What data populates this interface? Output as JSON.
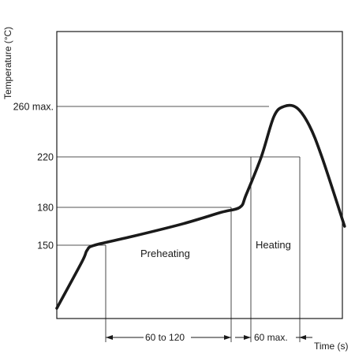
{
  "chart_data": {
    "type": "line",
    "ylabel": "Temperature (°C)",
    "xlabel": "Time (s)",
    "y_ticks": [
      {
        "value": 150,
        "label": "150"
      },
      {
        "value": 180,
        "label": "180"
      },
      {
        "value": 220,
        "label": "220"
      },
      {
        "value": 260,
        "label": "260 max."
      }
    ],
    "profile": [
      {
        "t": 0,
        "temp": 100
      },
      {
        "t": 20,
        "temp": 137
      },
      {
        "t": 24,
        "temp": 146
      },
      {
        "t": 30,
        "temp": 150
      },
      {
        "t": 60,
        "temp": 157
      },
      {
        "t": 100,
        "temp": 167
      },
      {
        "t": 130,
        "temp": 176
      },
      {
        "t": 145,
        "temp": 180
      },
      {
        "t": 150,
        "temp": 190
      },
      {
        "t": 162,
        "temp": 220
      },
      {
        "t": 172,
        "temp": 252
      },
      {
        "t": 180,
        "temp": 260
      },
      {
        "t": 190,
        "temp": 259
      },
      {
        "t": 200,
        "temp": 245
      },
      {
        "t": 210,
        "temp": 220
      },
      {
        "t": 228,
        "temp": 165
      }
    ],
    "regions": [
      {
        "label": "Preheating"
      },
      {
        "label": "Heating"
      }
    ],
    "durations": [
      {
        "label": "60 to 120"
      },
      {
        "label": "60 max."
      }
    ]
  }
}
